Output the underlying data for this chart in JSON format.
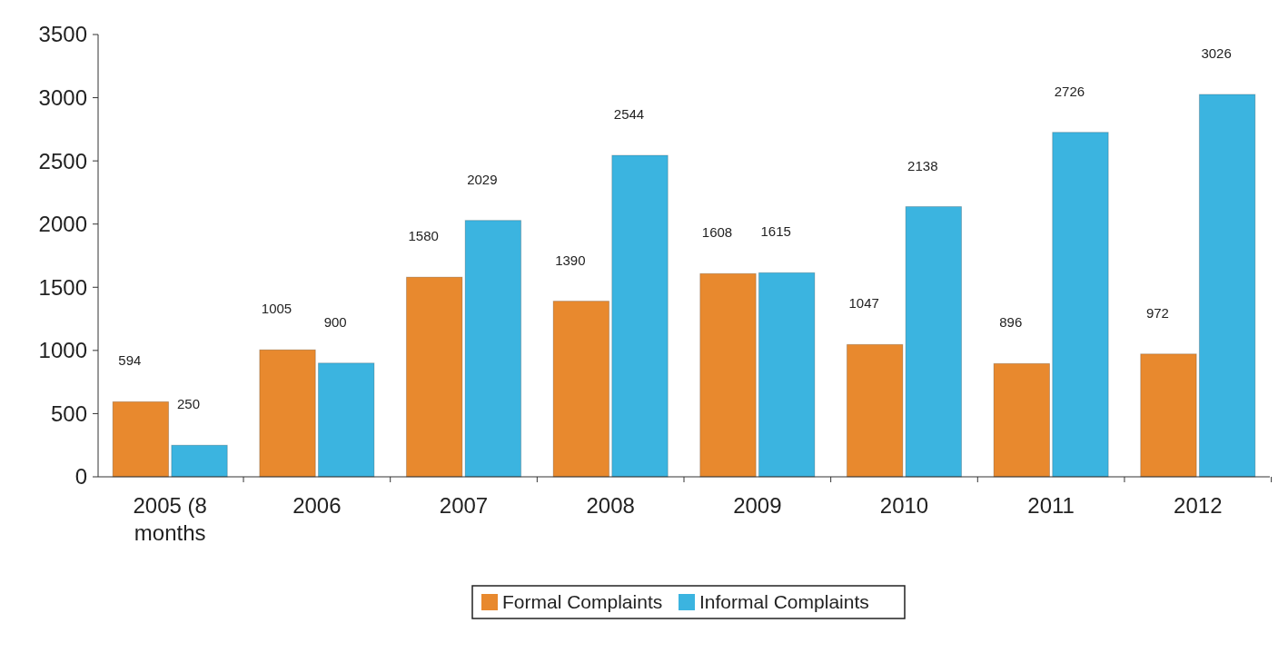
{
  "chart_data": {
    "type": "bar",
    "categories": [
      "2005 (8 months",
      "2006",
      "2007",
      "2008",
      "2009",
      "2010",
      "2011",
      "2012"
    ],
    "series": [
      {
        "name": "Formal Complaints",
        "color": "#e8892e",
        "values": [
          594,
          1005,
          1580,
          1390,
          1608,
          1047,
          896,
          972
        ]
      },
      {
        "name": "Informal Complaints",
        "color": "#3bb4e0",
        "values": [
          250,
          900,
          2029,
          2544,
          1615,
          2138,
          2726,
          3026
        ]
      }
    ],
    "ylim": [
      0,
      3500
    ],
    "yticks": [
      0,
      500,
      1000,
      1500,
      2000,
      2500,
      3000,
      3500
    ],
    "grid": false,
    "legend": "bottom",
    "data_labels": true
  }
}
